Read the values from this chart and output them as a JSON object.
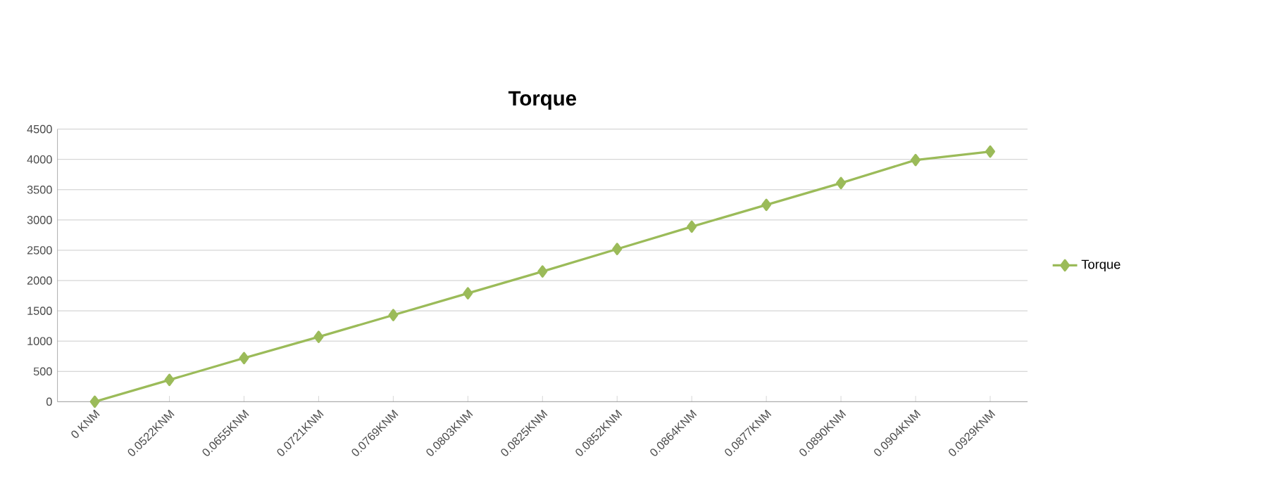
{
  "chart_data": {
    "type": "line",
    "title": "Torque",
    "categories": [
      "0 KNM",
      "0.0522KNM",
      "0.0655KNM",
      "0.0721KNM",
      "0.0769KNM",
      "0.0803KNM",
      "0.0825KNM",
      "0.0852KNM",
      "0.0864KNM",
      "0.0877KNM",
      "0.0890KNM",
      "0.0904KNM",
      "0.0929KNM"
    ],
    "series": [
      {
        "name": "Torque",
        "color": "#9bbb59",
        "values": [
          0,
          360,
          720,
          1070,
          1430,
          1790,
          2150,
          2520,
          2890,
          3250,
          3610,
          3990,
          4130
        ]
      }
    ],
    "ylim": [
      0,
      4500
    ],
    "yticks": [
      0,
      500,
      1000,
      1500,
      2000,
      2500,
      3000,
      3500,
      4000,
      4500
    ],
    "grid": "y",
    "legend": "right",
    "marker": "diamond",
    "line_style": "solid"
  }
}
